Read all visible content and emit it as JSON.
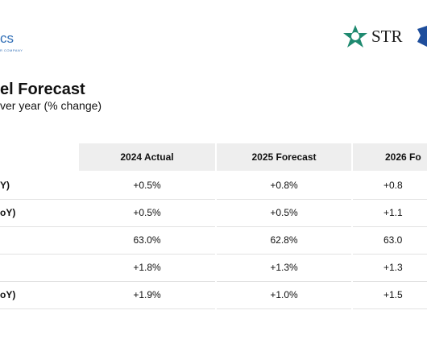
{
  "header": {
    "logo_left": "cs",
    "logo_left_tagline": "R COMPANY",
    "logo_right": "STR"
  },
  "title": "el Forecast",
  "subtitle": "ver year  (% change)",
  "table": {
    "columns": [
      "2024 Actual",
      "2025 Forecast",
      "2026 Fo"
    ],
    "rows": [
      [
        "Y)",
        "+0.5%",
        "+0.8%",
        "+0.8"
      ],
      [
        "oY)",
        "+0.5%",
        "+0.5%",
        "+1.1"
      ],
      [
        "",
        "63.0%",
        "62.8%",
        "63.0"
      ],
      [
        "",
        "+1.8%",
        "+1.3%",
        "+1.3"
      ],
      [
        "oY)",
        "+1.9%",
        "+1.0%",
        "+1.5"
      ]
    ]
  }
}
